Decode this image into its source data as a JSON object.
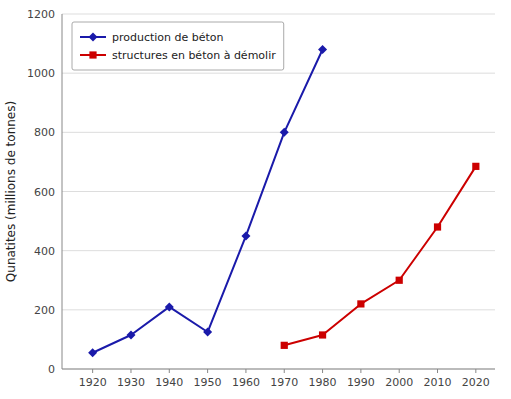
{
  "chart_data": {
    "type": "line",
    "ylabel": "Qunatites (millions de tonnes)",
    "x": [
      1920,
      1930,
      1940,
      1950,
      1960,
      1970,
      1980,
      1990,
      2000,
      2010,
      2020
    ],
    "series": [
      {
        "name": "production de béton",
        "color": "#1a1aaa",
        "marker": "diamond",
        "values": [
          55,
          115,
          210,
          125,
          450,
          800,
          1080,
          null,
          null,
          null,
          null
        ]
      },
      {
        "name": "structures en béton à démolir",
        "color": "#cc0000",
        "marker": "square",
        "values": [
          null,
          null,
          null,
          null,
          null,
          80,
          115,
          220,
          300,
          480,
          685
        ]
      }
    ],
    "xlim": [
      1912,
      2025
    ],
    "ylim": [
      0,
      1200
    ],
    "xticks": [
      1920,
      1930,
      1940,
      1950,
      1960,
      1970,
      1980,
      1990,
      2000,
      2010,
      2020
    ],
    "yticks": [
      0,
      200,
      400,
      600,
      800,
      1000,
      1200
    ],
    "grid": true,
    "legend": "upper left"
  }
}
